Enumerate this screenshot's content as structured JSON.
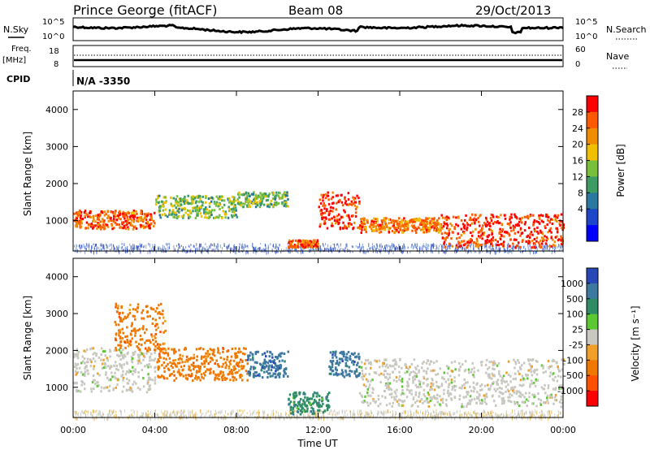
{
  "header": {
    "station": "Prince George (fitACF)",
    "beam": "Beam 08",
    "date": "29/Oct/2013"
  },
  "noise_panel": {
    "left_label": "N.Sky",
    "left_ticks": [
      "10^5",
      "10^0"
    ],
    "right_ticks": [
      "10^5",
      "10^0"
    ],
    "right_label": "N.Search"
  },
  "freq_panel": {
    "left_label_top": "Freq.",
    "left_label_bottom": "[MHz]",
    "left_ticks": [
      "18",
      "8"
    ],
    "right_ticks": [
      "60",
      "0"
    ],
    "right_label": "Nave"
  },
  "cpid": {
    "label": "CPID",
    "value": "N/A  -3350"
  },
  "power_panel": {
    "ylabel": "Slant Range [km]",
    "yticks": [
      "4000",
      "3000",
      "2000",
      "1000"
    ],
    "colorbar": {
      "label": "Power [dB]",
      "ticks": [
        "28",
        "24",
        "20",
        "16",
        "12",
        "8",
        "4"
      ],
      "colors": [
        "#ff0000",
        "#ff5a00",
        "#f08c00",
        "#f0c000",
        "#78c03c",
        "#3c9c64",
        "#2878a0",
        "#1e46c8",
        "#0000ff"
      ]
    }
  },
  "velocity_panel": {
    "ylabel": "Slant Range [km]",
    "yticks": [
      "4000",
      "3000",
      "2000",
      "1000"
    ],
    "colorbar": {
      "label": "Velocity [m s⁻¹]",
      "ticks": [
        "1000",
        "500",
        "100",
        "25",
        "-25",
        "-100",
        "-500",
        "-1000"
      ],
      "colors": [
        "#2848b8",
        "#3c78a0",
        "#2e8c64",
        "#5cc832",
        "#c8c8c0",
        "#f0a028",
        "#f07800",
        "#ff5000",
        "#ff0000"
      ]
    }
  },
  "xaxis": {
    "label": "Time UT",
    "ticks": [
      "00:00",
      "04:00",
      "08:00",
      "12:00",
      "16:00",
      "20:00",
      "00:00"
    ]
  },
  "chart_data": [
    {
      "type": "heatmap",
      "title": "Power",
      "xlabel": "Time UT",
      "ylabel": "Slant Range [km]",
      "xlim_hours": [
        0,
        24
      ],
      "ylim_km": [
        180,
        4500
      ],
      "colorbar_range_db": [
        0,
        30
      ],
      "regions": [
        {
          "t": [
            0.0,
            4.0
          ],
          "range_km": [
            800,
            1300
          ],
          "power_db": 26
        },
        {
          "t": [
            4.0,
            8.0
          ],
          "range_km": [
            1100,
            1700
          ],
          "power_db": 14
        },
        {
          "t": [
            8.0,
            10.5
          ],
          "range_km": [
            1400,
            1800
          ],
          "power_db": 14
        },
        {
          "t": [
            10.5,
            12.0
          ],
          "range_km": [
            300,
            500
          ],
          "power_db": 26
        },
        {
          "t": [
            12.0,
            14.0
          ],
          "range_km": [
            800,
            1800
          ],
          "power_db": 28
        },
        {
          "t": [
            14.0,
            18.0
          ],
          "range_km": [
            700,
            1100
          ],
          "power_db": 24
        },
        {
          "t": [
            18.0,
            24.0
          ],
          "range_km": [
            300,
            1200
          ],
          "power_db": 28
        }
      ]
    },
    {
      "type": "heatmap",
      "title": "Velocity",
      "xlabel": "Time UT",
      "ylabel": "Slant Range [km]",
      "xlim_hours": [
        0,
        24
      ],
      "ylim_km": [
        180,
        4500
      ],
      "colorbar_range_ms": [
        -1000,
        1000
      ],
      "regions": [
        {
          "t": [
            0.0,
            4.0
          ],
          "range_km": [
            900,
            2100
          ],
          "velocity_ms": 0
        },
        {
          "t": [
            2.0,
            4.5
          ],
          "range_km": [
            2000,
            3300
          ],
          "velocity_ms": -100
        },
        {
          "t": [
            4.0,
            8.5
          ],
          "range_km": [
            1200,
            2100
          ],
          "velocity_ms": -100
        },
        {
          "t": [
            8.5,
            10.5
          ],
          "range_km": [
            1300,
            2000
          ],
          "velocity_ms": 500
        },
        {
          "t": [
            10.5,
            12.5
          ],
          "range_km": [
            300,
            900
          ],
          "velocity_ms": 100
        },
        {
          "t": [
            12.5,
            14.0
          ],
          "range_km": [
            1300,
            2000
          ],
          "velocity_ms": 500
        },
        {
          "t": [
            14.0,
            24.0
          ],
          "range_km": [
            500,
            1800
          ],
          "velocity_ms": 0
        }
      ]
    }
  ]
}
